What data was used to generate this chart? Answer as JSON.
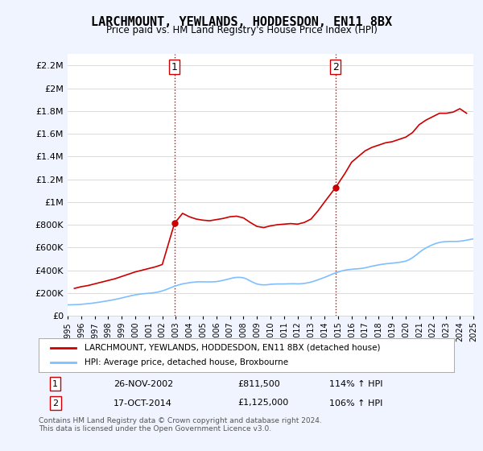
{
  "title": "LARCHMOUNT, YEWLANDS, HODDESDON, EN11 8BX",
  "subtitle": "Price paid vs. HM Land Registry's House Price Index (HPI)",
  "ylim": [
    0,
    2300000
  ],
  "yticks": [
    0,
    200000,
    400000,
    600000,
    800000,
    1000000,
    1200000,
    1400000,
    1600000,
    1800000,
    2000000,
    2200000
  ],
  "ytick_labels": [
    "£0",
    "£200K",
    "£400K",
    "£600K",
    "£800K",
    "£1M",
    "£1.2M",
    "£1.4M",
    "£1.6M",
    "£1.8M",
    "£2M",
    "£2.2M"
  ],
  "xmin": 1995,
  "xmax": 2025,
  "xticks": [
    1995,
    1996,
    1997,
    1998,
    1999,
    2000,
    2001,
    2002,
    2003,
    2004,
    2005,
    2006,
    2007,
    2008,
    2009,
    2010,
    2011,
    2012,
    2013,
    2014,
    2015,
    2016,
    2017,
    2018,
    2019,
    2020,
    2021,
    2022,
    2023,
    2024,
    2025
  ],
  "hpi_color": "#7fbfff",
  "price_color": "#cc0000",
  "vline_color": "#cc0000",
  "vline_style": ":",
  "bg_color": "#f0f4ff",
  "plot_bg": "#ffffff",
  "sale1_x": 2002.9,
  "sale1_y": 811500,
  "sale1_label": "1",
  "sale1_date": "26-NOV-2002",
  "sale1_price": "£811,500",
  "sale1_hpi": "114% ↑ HPI",
  "sale2_x": 2014.8,
  "sale2_y": 1125000,
  "sale2_label": "2",
  "sale2_date": "17-OCT-2014",
  "sale2_price": "£1,125,000",
  "sale2_hpi": "106% ↑ HPI",
  "legend_line1": "LARCHMOUNT, YEWLANDS, HODDESDON, EN11 8BX (detached house)",
  "legend_line2": "HPI: Average price, detached house, Broxbourne",
  "footer": "Contains HM Land Registry data © Crown copyright and database right 2024.\nThis data is licensed under the Open Government Licence v3.0.",
  "hpi_data_x": [
    1995.0,
    1995.25,
    1995.5,
    1995.75,
    1996.0,
    1996.25,
    1996.5,
    1996.75,
    1997.0,
    1997.25,
    1997.5,
    1997.75,
    1998.0,
    1998.25,
    1998.5,
    1998.75,
    1999.0,
    1999.25,
    1999.5,
    1999.75,
    2000.0,
    2000.25,
    2000.5,
    2000.75,
    2001.0,
    2001.25,
    2001.5,
    2001.75,
    2002.0,
    2002.25,
    2002.5,
    2002.75,
    2003.0,
    2003.25,
    2003.5,
    2003.75,
    2004.0,
    2004.25,
    2004.5,
    2004.75,
    2005.0,
    2005.25,
    2005.5,
    2005.75,
    2006.0,
    2006.25,
    2006.5,
    2006.75,
    2007.0,
    2007.25,
    2007.5,
    2007.75,
    2008.0,
    2008.25,
    2008.5,
    2008.75,
    2009.0,
    2009.25,
    2009.5,
    2009.75,
    2010.0,
    2010.25,
    2010.5,
    2010.75,
    2011.0,
    2011.25,
    2011.5,
    2011.75,
    2012.0,
    2012.25,
    2012.5,
    2012.75,
    2013.0,
    2013.25,
    2013.5,
    2013.75,
    2014.0,
    2014.25,
    2014.5,
    2014.75,
    2015.0,
    2015.25,
    2015.5,
    2015.75,
    2016.0,
    2016.25,
    2016.5,
    2016.75,
    2017.0,
    2017.25,
    2017.5,
    2017.75,
    2018.0,
    2018.25,
    2018.5,
    2018.75,
    2019.0,
    2019.25,
    2019.5,
    2019.75,
    2020.0,
    2020.25,
    2020.5,
    2020.75,
    2021.0,
    2021.25,
    2021.5,
    2021.75,
    2022.0,
    2022.25,
    2022.5,
    2022.75,
    2023.0,
    2023.25,
    2023.5,
    2023.75,
    2024.0,
    2024.25,
    2024.5,
    2024.75,
    2025.0
  ],
  "hpi_data_y": [
    95000,
    96000,
    97000,
    98000,
    100000,
    103000,
    106000,
    109000,
    113000,
    117000,
    122000,
    127000,
    132000,
    137000,
    143000,
    149000,
    156000,
    163000,
    170000,
    177000,
    183000,
    188000,
    192000,
    195000,
    197000,
    200000,
    204000,
    210000,
    218000,
    228000,
    240000,
    252000,
    263000,
    272000,
    280000,
    285000,
    290000,
    294000,
    297000,
    298000,
    298000,
    297000,
    297000,
    298000,
    300000,
    305000,
    311000,
    318000,
    326000,
    333000,
    337000,
    337000,
    333000,
    322000,
    306000,
    291000,
    279000,
    273000,
    271000,
    272000,
    276000,
    278000,
    279000,
    279000,
    279000,
    280000,
    281000,
    281000,
    280000,
    281000,
    284000,
    289000,
    296000,
    305000,
    315000,
    326000,
    337000,
    349000,
    362000,
    374000,
    384000,
    393000,
    400000,
    405000,
    408000,
    411000,
    413000,
    416000,
    421000,
    428000,
    435000,
    441000,
    447000,
    452000,
    456000,
    459000,
    462000,
    465000,
    469000,
    474000,
    480000,
    492000,
    510000,
    532000,
    556000,
    578000,
    596000,
    611000,
    625000,
    636000,
    644000,
    649000,
    652000,
    653000,
    653000,
    653000,
    655000,
    659000,
    664000,
    670000,
    676000
  ],
  "price_data_x": [
    1995.5,
    1996.0,
    1996.5,
    1997.0,
    1997.5,
    1998.0,
    1998.5,
    1999.0,
    1999.5,
    2000.0,
    2000.5,
    2001.0,
    2001.5,
    2002.0,
    2002.9,
    2003.5,
    2004.0,
    2004.5,
    2005.0,
    2005.5,
    2006.0,
    2006.5,
    2007.0,
    2007.5,
    2008.0,
    2008.5,
    2009.0,
    2009.5,
    2010.0,
    2010.5,
    2011.0,
    2011.5,
    2012.0,
    2012.5,
    2013.0,
    2013.5,
    2014.0,
    2014.8,
    2015.5,
    2016.0,
    2016.5,
    2017.0,
    2017.5,
    2018.0,
    2018.5,
    2019.0,
    2019.5,
    2020.0,
    2020.5,
    2021.0,
    2021.5,
    2022.0,
    2022.5,
    2023.0,
    2023.5,
    2024.0,
    2024.5
  ],
  "price_data_y": [
    240000,
    255000,
    265000,
    280000,
    295000,
    310000,
    325000,
    345000,
    365000,
    385000,
    400000,
    415000,
    430000,
    450000,
    811500,
    900000,
    870000,
    850000,
    840000,
    835000,
    845000,
    855000,
    870000,
    875000,
    860000,
    820000,
    785000,
    775000,
    790000,
    800000,
    805000,
    810000,
    805000,
    820000,
    850000,
    920000,
    1000000,
    1125000,
    1250000,
    1350000,
    1400000,
    1450000,
    1480000,
    1500000,
    1520000,
    1530000,
    1550000,
    1570000,
    1610000,
    1680000,
    1720000,
    1750000,
    1780000,
    1780000,
    1790000,
    1820000,
    1780000
  ]
}
